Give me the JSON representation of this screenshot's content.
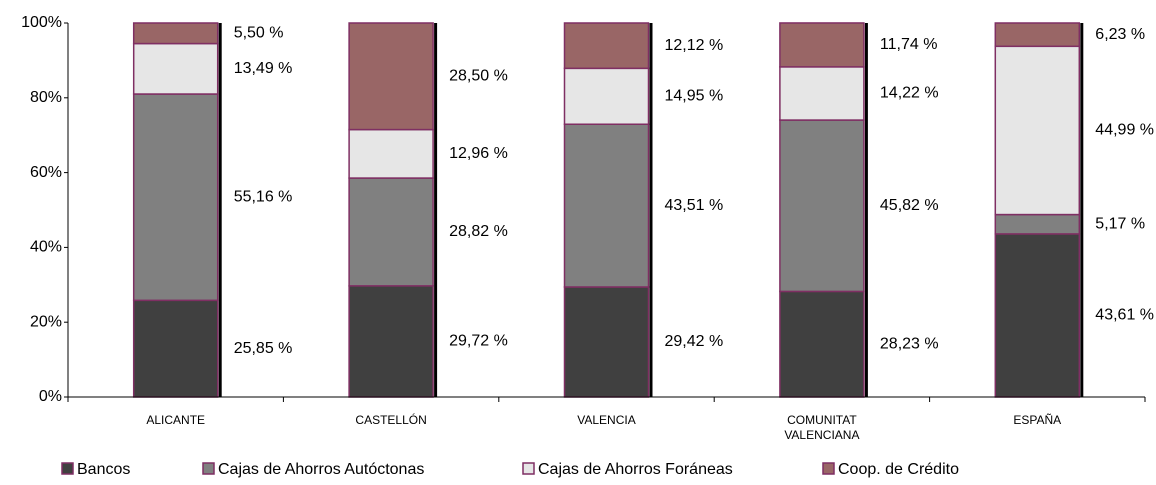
{
  "chart_data": {
    "type": "stacked_bar_100",
    "categories": [
      "ALICANTE",
      "CASTELLÓN",
      "VALENCIA",
      "COMUNITAT VALENCIANA",
      "ESPAÑA"
    ],
    "series": [
      {
        "name": "Bancos",
        "color": "#404040",
        "values": [
          25.85,
          29.72,
          29.42,
          28.23,
          43.61
        ],
        "value_labels": [
          "25,85 %",
          "29,72 %",
          "29,42 %",
          "28,23 %",
          "43,61 %"
        ]
      },
      {
        "name": "Cajas de Ahorros Autóctonas",
        "color": "#808080",
        "values": [
          55.16,
          28.82,
          43.51,
          45.82,
          5.17
        ],
        "value_labels": [
          "55,16 %",
          "28,82 %",
          "43,51 %",
          "45,82 %",
          "5,17 %"
        ]
      },
      {
        "name": "Cajas de Ahorros Foráneas",
        "color": "#e6e6e6",
        "values": [
          13.49,
          12.96,
          14.95,
          14.22,
          44.99
        ],
        "value_labels": [
          "13,49 %",
          "12,96 %",
          "14,95 %",
          "14,22 %",
          "44,99 %"
        ]
      },
      {
        "name": "Coop. de Crédito",
        "color": "#996666",
        "values": [
          5.5,
          28.5,
          12.12,
          11.74,
          6.23
        ],
        "value_labels": [
          "5,50 %",
          "28,50 %",
          "12,12 %",
          "11,74 %",
          "6,23 %"
        ]
      }
    ],
    "ylim": [
      0,
      100
    ],
    "yticks": [
      {
        "value": 0,
        "label": "0%"
      },
      {
        "value": 20,
        "label": "20%"
      },
      {
        "value": 40,
        "label": "40%"
      },
      {
        "value": 60,
        "label": "60%"
      },
      {
        "value": 80,
        "label": "80%"
      },
      {
        "value": 100,
        "label": "100%"
      }
    ],
    "bar_border_color": "#7f2f63",
    "legend": "bottom"
  }
}
